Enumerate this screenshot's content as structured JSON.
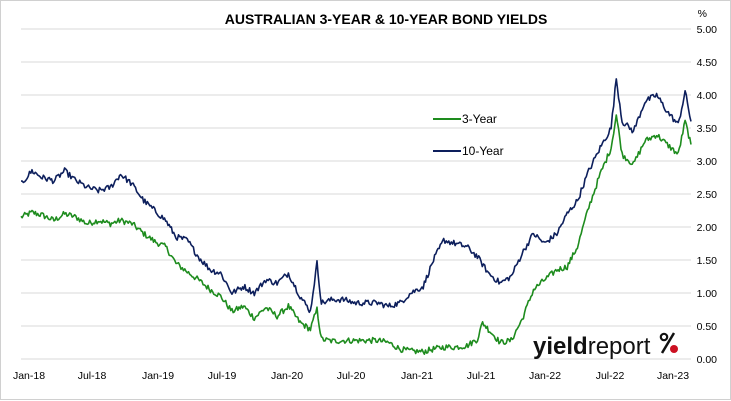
{
  "chart_data": {
    "type": "line",
    "title": "AUSTRALIAN 3-YEAR & 10-YEAR BOND YIELDS",
    "ylabel": "%",
    "xlabel": "",
    "ylim": [
      0,
      5
    ],
    "yticks": [
      "0.00",
      "0.50",
      "1.00",
      "1.50",
      "2.00",
      "2.50",
      "3.00",
      "3.50",
      "4.00",
      "4.50",
      "5.00"
    ],
    "xticks": [
      "Jan-18",
      "Jul-18",
      "Jan-19",
      "Jul-19",
      "Jan-20",
      "Jul-20",
      "Jan-21",
      "Jul-21",
      "Jan-22",
      "Jul-22",
      "Jan-23"
    ],
    "grid": "horizontal",
    "legend_position": "center-right",
    "series": [
      {
        "name": "3-Year",
        "color": "#1e8c1e",
        "points": [
          [
            "2018-01-02",
            2.15
          ],
          [
            "2018-02-01",
            2.22
          ],
          [
            "2018-03-01",
            2.18
          ],
          [
            "2018-04-02",
            2.1
          ],
          [
            "2018-05-01",
            2.2
          ],
          [
            "2018-06-01",
            2.15
          ],
          [
            "2018-07-02",
            2.05
          ],
          [
            "2018-08-01",
            2.1
          ],
          [
            "2018-09-03",
            2.05
          ],
          [
            "2018-10-01",
            2.1
          ],
          [
            "2018-11-01",
            2.05
          ],
          [
            "2018-12-03",
            1.9
          ],
          [
            "2019-01-02",
            1.78
          ],
          [
            "2019-02-01",
            1.7
          ],
          [
            "2019-03-01",
            1.45
          ],
          [
            "2019-04-01",
            1.32
          ],
          [
            "2019-05-01",
            1.2
          ],
          [
            "2019-06-03",
            1.05
          ],
          [
            "2019-07-01",
            0.95
          ],
          [
            "2019-08-01",
            0.72
          ],
          [
            "2019-09-02",
            0.8
          ],
          [
            "2019-10-01",
            0.62
          ],
          [
            "2019-11-01",
            0.78
          ],
          [
            "2019-12-02",
            0.65
          ],
          [
            "2020-01-02",
            0.8
          ],
          [
            "2020-02-03",
            0.55
          ],
          [
            "2020-03-02",
            0.45
          ],
          [
            "2020-03-20",
            0.75
          ],
          [
            "2020-04-01",
            0.3
          ],
          [
            "2020-05-01",
            0.27
          ],
          [
            "2020-06-01",
            0.28
          ],
          [
            "2020-07-01",
            0.28
          ],
          [
            "2020-08-03",
            0.28
          ],
          [
            "2020-09-01",
            0.28
          ],
          [
            "2020-10-01",
            0.25
          ],
          [
            "2020-11-02",
            0.15
          ],
          [
            "2020-12-01",
            0.12
          ],
          [
            "2021-01-04",
            0.11
          ],
          [
            "2021-02-01",
            0.15
          ],
          [
            "2021-03-01",
            0.18
          ],
          [
            "2021-04-01",
            0.18
          ],
          [
            "2021-05-03",
            0.2
          ],
          [
            "2021-06-01",
            0.3
          ],
          [
            "2021-06-15",
            0.55
          ],
          [
            "2021-07-01",
            0.45
          ],
          [
            "2021-08-02",
            0.25
          ],
          [
            "2021-09-01",
            0.28
          ],
          [
            "2021-10-01",
            0.6
          ],
          [
            "2021-11-01",
            1.05
          ],
          [
            "2021-12-01",
            1.2
          ],
          [
            "2022-01-04",
            1.35
          ],
          [
            "2022-02-01",
            1.4
          ],
          [
            "2022-03-01",
            1.7
          ],
          [
            "2022-04-01",
            2.3
          ],
          [
            "2022-05-02",
            2.8
          ],
          [
            "2022-06-01",
            3.2
          ],
          [
            "2022-06-15",
            3.7
          ],
          [
            "2022-07-01",
            3.1
          ],
          [
            "2022-08-01",
            2.95
          ],
          [
            "2022-09-01",
            3.3
          ],
          [
            "2022-10-03",
            3.4
          ],
          [
            "2022-11-01",
            3.25
          ],
          [
            "2022-12-01",
            3.1
          ],
          [
            "2022-12-20",
            3.6
          ],
          [
            "2023-01-05",
            3.25
          ]
        ]
      },
      {
        "name": "10-Year",
        "color": "#0d1f5c",
        "points": [
          [
            "2018-01-02",
            2.65
          ],
          [
            "2018-02-01",
            2.85
          ],
          [
            "2018-03-01",
            2.75
          ],
          [
            "2018-04-02",
            2.7
          ],
          [
            "2018-05-01",
            2.85
          ],
          [
            "2018-06-01",
            2.7
          ],
          [
            "2018-07-02",
            2.6
          ],
          [
            "2018-08-01",
            2.55
          ],
          [
            "2018-09-03",
            2.6
          ],
          [
            "2018-10-01",
            2.8
          ],
          [
            "2018-11-01",
            2.65
          ],
          [
            "2018-12-03",
            2.4
          ],
          [
            "2019-01-02",
            2.25
          ],
          [
            "2019-02-01",
            2.1
          ],
          [
            "2019-03-01",
            1.85
          ],
          [
            "2019-04-01",
            1.8
          ],
          [
            "2019-05-01",
            1.55
          ],
          [
            "2019-06-03",
            1.35
          ],
          [
            "2019-07-01",
            1.3
          ],
          [
            "2019-08-01",
            1.0
          ],
          [
            "2019-09-02",
            1.1
          ],
          [
            "2019-10-01",
            1.0
          ],
          [
            "2019-11-01",
            1.2
          ],
          [
            "2019-12-02",
            1.15
          ],
          [
            "2020-01-02",
            1.3
          ],
          [
            "2020-02-03",
            0.95
          ],
          [
            "2020-03-02",
            0.72
          ],
          [
            "2020-03-20",
            1.45
          ],
          [
            "2020-04-01",
            0.85
          ],
          [
            "2020-05-01",
            0.9
          ],
          [
            "2020-06-01",
            0.9
          ],
          [
            "2020-07-01",
            0.85
          ],
          [
            "2020-08-03",
            0.85
          ],
          [
            "2020-09-01",
            0.85
          ],
          [
            "2020-10-01",
            0.8
          ],
          [
            "2020-11-02",
            0.85
          ],
          [
            "2020-12-01",
            1.0
          ],
          [
            "2021-01-04",
            1.1
          ],
          [
            "2021-02-01",
            1.5
          ],
          [
            "2021-03-01",
            1.8
          ],
          [
            "2021-04-01",
            1.75
          ],
          [
            "2021-05-03",
            1.7
          ],
          [
            "2021-06-01",
            1.55
          ],
          [
            "2021-07-01",
            1.3
          ],
          [
            "2021-08-02",
            1.15
          ],
          [
            "2021-09-01",
            1.25
          ],
          [
            "2021-10-01",
            1.6
          ],
          [
            "2021-11-01",
            1.9
          ],
          [
            "2021-12-01",
            1.75
          ],
          [
            "2022-01-04",
            1.9
          ],
          [
            "2022-02-01",
            2.2
          ],
          [
            "2022-03-01",
            2.4
          ],
          [
            "2022-04-01",
            2.85
          ],
          [
            "2022-05-02",
            3.2
          ],
          [
            "2022-06-01",
            3.5
          ],
          [
            "2022-06-15",
            4.25
          ],
          [
            "2022-07-01",
            3.6
          ],
          [
            "2022-08-01",
            3.45
          ],
          [
            "2022-09-01",
            3.9
          ],
          [
            "2022-10-03",
            4.0
          ],
          [
            "2022-11-01",
            3.75
          ],
          [
            "2022-12-01",
            3.55
          ],
          [
            "2022-12-20",
            4.05
          ],
          [
            "2023-01-05",
            3.6
          ]
        ]
      }
    ],
    "x_start": "2018-01-02",
    "x_end": "2023-01-05"
  },
  "brand": {
    "name_bold": "yield",
    "name_light": "report",
    "symbol": "%",
    "accent": "#cc1122"
  }
}
